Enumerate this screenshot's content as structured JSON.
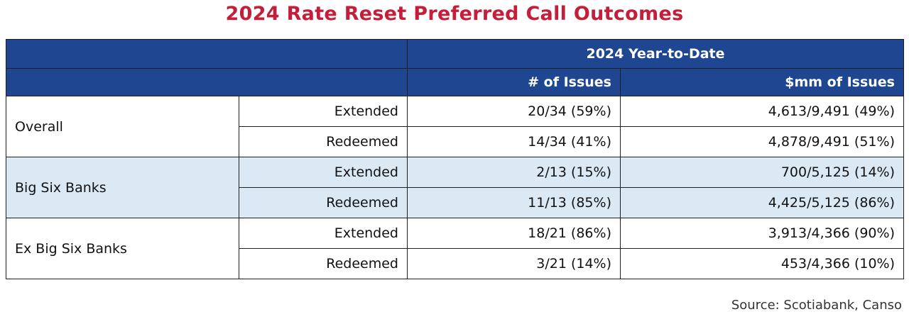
{
  "title": "2024 Rate Reset Preferred Call Outcomes",
  "colors": {
    "title": "#c41e3a",
    "header_bg": "#1f4690",
    "shaded_row": "#dbe9f5"
  },
  "table": {
    "period_header": "2024 Year-to-Date",
    "col_count": "# of Issues",
    "col_amount": "$mm of Issues",
    "groups": [
      {
        "name": "Overall",
        "shaded": false,
        "rows": [
          {
            "outcome": "Extended",
            "count": "20/34 (59%)",
            "amount": "4,613/9,491 (49%)"
          },
          {
            "outcome": "Redeemed",
            "count": "14/34 (41%)",
            "amount": "4,878/9,491 (51%)"
          }
        ]
      },
      {
        "name": "Big Six Banks",
        "shaded": true,
        "rows": [
          {
            "outcome": "Extended",
            "count": "2/13 (15%)",
            "amount": "700/5,125 (14%)"
          },
          {
            "outcome": "Redeemed",
            "count": "11/13 (85%)",
            "amount": "4,425/5,125 (86%)"
          }
        ]
      },
      {
        "name": "Ex Big Six Banks",
        "shaded": false,
        "rows": [
          {
            "outcome": "Extended",
            "count": "18/21 (86%)",
            "amount": "3,913/4,366 (90%)"
          },
          {
            "outcome": "Redeemed",
            "count": "3/21 (14%)",
            "amount": "453/4,366 (10%)"
          }
        ]
      }
    ]
  },
  "source": "Source: Scotiabank, Canso"
}
